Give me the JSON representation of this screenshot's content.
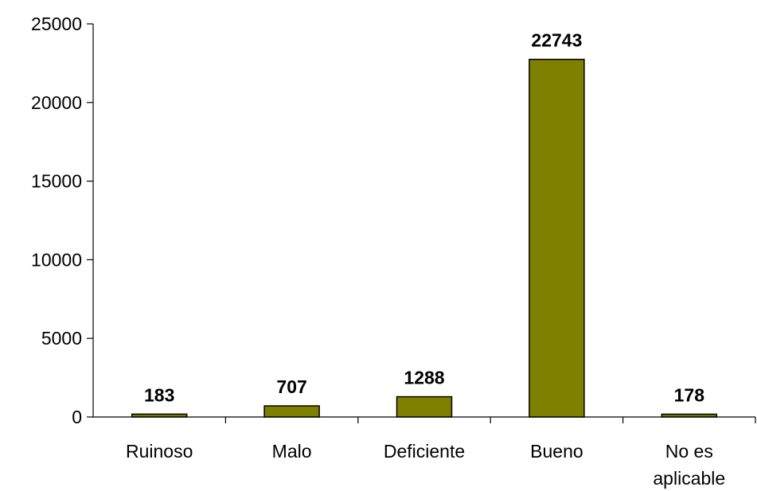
{
  "chart_data": {
    "type": "bar",
    "categories": [
      [
        "Ruinoso"
      ],
      [
        "Malo"
      ],
      [
        "Deficiente"
      ],
      [
        "Bueno"
      ],
      [
        "No es",
        "aplicable"
      ]
    ],
    "values": [
      183,
      707,
      1288,
      22743,
      178
    ],
    "data_labels": [
      "183",
      "707",
      "1288",
      "22743",
      "178"
    ],
    "y_ticks": [
      0,
      5000,
      10000,
      15000,
      20000,
      25000
    ],
    "ylim": [
      0,
      25000
    ],
    "grid": false,
    "legend": "none",
    "bar_color": "#808000",
    "bar_border_color": "#000000"
  }
}
